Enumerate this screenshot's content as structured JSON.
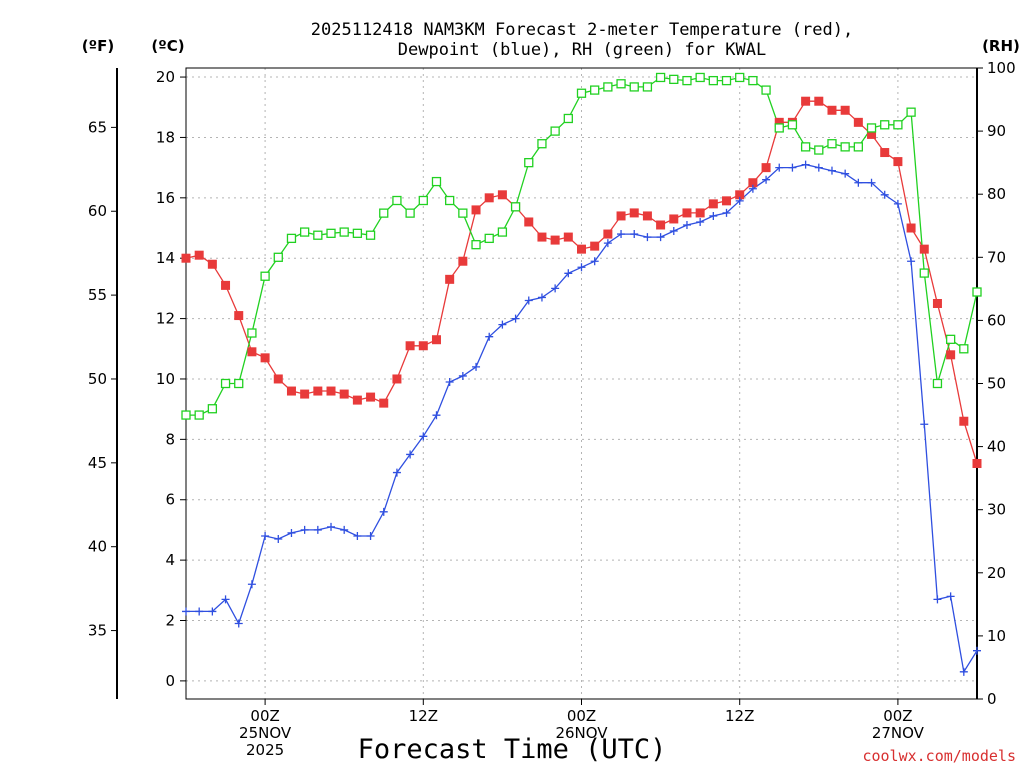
{
  "chart_data": {
    "type": "line",
    "title_lines": [
      "2025112418 NAM3KM Forecast 2-meter Temperature (red),",
      "Dewpoint (blue), RH (green) for KWAL"
    ],
    "unit_labels": {
      "fahrenheit": "(ºF)",
      "celsius": "(ºC)",
      "rh": "(RH)"
    },
    "xlabel": "Forecast Time (UTC)",
    "credit": "coolwx.com/models",
    "x_unit": "forecast hour",
    "xlim": [
      0,
      60
    ],
    "x_ticks": [
      {
        "x": 6,
        "lines": [
          "00Z",
          "25NOV",
          "2025"
        ]
      },
      {
        "x": 18,
        "lines": [
          "12Z"
        ]
      },
      {
        "x": 30,
        "lines": [
          "00Z",
          "26NOV"
        ]
      },
      {
        "x": 42,
        "lines": [
          "12Z"
        ]
      },
      {
        "x": 54,
        "lines": [
          "00Z",
          "27NOV"
        ]
      }
    ],
    "y_celsius": {
      "range": [
        -0.6,
        20.3
      ],
      "ticks": [
        0,
        2,
        4,
        6,
        8,
        10,
        12,
        14,
        16,
        18,
        20
      ]
    },
    "y_fahrenheit": {
      "ticks": [
        35,
        40,
        45,
        50,
        55,
        60,
        65
      ]
    },
    "y_rh": {
      "range": [
        0,
        100
      ],
      "ticks": [
        0,
        10,
        20,
        30,
        40,
        50,
        60,
        70,
        80,
        90,
        100
      ]
    },
    "grid": true,
    "series": [
      {
        "name": "2-meter Temperature",
        "unit": "°C",
        "axis": "celsius",
        "color": "#e83a3a",
        "marker": "filled-square",
        "x": [
          0,
          1,
          2,
          3,
          4,
          5,
          6,
          7,
          8,
          9,
          10,
          11,
          12,
          13,
          14,
          15,
          16,
          17,
          18,
          19,
          20,
          21,
          22,
          23,
          24,
          25,
          26,
          27,
          28,
          29,
          30,
          31,
          32,
          33,
          34,
          35,
          36,
          37,
          38,
          39,
          40,
          41,
          42,
          43,
          44,
          45,
          46,
          47,
          48,
          49,
          50,
          51,
          52,
          53,
          54,
          55,
          56,
          57,
          58,
          59,
          60
        ],
        "values": [
          14.0,
          14.1,
          13.8,
          13.1,
          12.1,
          10.9,
          10.7,
          10.0,
          9.6,
          9.5,
          9.6,
          9.6,
          9.5,
          9.3,
          9.4,
          9.2,
          10.0,
          11.1,
          11.1,
          11.3,
          13.3,
          13.9,
          15.6,
          16.0,
          16.1,
          15.7,
          15.2,
          14.7,
          14.6,
          14.7,
          14.3,
          14.4,
          14.8,
          15.4,
          15.5,
          15.4,
          15.1,
          15.3,
          15.5,
          15.5,
          15.8,
          15.9,
          16.1,
          16.5,
          17.0,
          18.5,
          18.5,
          19.2,
          19.2,
          18.9,
          18.9,
          18.5,
          18.1,
          17.5,
          17.2,
          15.0,
          14.3,
          12.5,
          10.8,
          8.6,
          7.2
        ]
      },
      {
        "name": "Dewpoint",
        "unit": "°C",
        "axis": "celsius",
        "color": "#2f4fe0",
        "marker": "plus",
        "x": [
          0,
          1,
          2,
          3,
          4,
          5,
          6,
          7,
          8,
          9,
          10,
          11,
          12,
          13,
          14,
          15,
          16,
          17,
          18,
          19,
          20,
          21,
          22,
          23,
          24,
          25,
          26,
          27,
          28,
          29,
          30,
          31,
          32,
          33,
          34,
          35,
          36,
          37,
          38,
          39,
          40,
          41,
          42,
          43,
          44,
          45,
          46,
          47,
          48,
          49,
          50,
          51,
          52,
          53,
          54,
          55,
          56,
          57,
          58,
          59,
          60
        ],
        "values": [
          2.3,
          2.3,
          2.3,
          2.7,
          1.9,
          3.2,
          4.8,
          4.7,
          4.9,
          5.0,
          5.0,
          5.1,
          5.0,
          4.8,
          4.8,
          5.6,
          6.9,
          7.5,
          8.1,
          8.8,
          9.9,
          10.1,
          10.4,
          11.4,
          11.8,
          12.0,
          12.6,
          12.7,
          13.0,
          13.5,
          13.7,
          13.9,
          14.5,
          14.8,
          14.8,
          14.7,
          14.7,
          14.9,
          15.1,
          15.2,
          15.4,
          15.5,
          15.9,
          16.3,
          16.6,
          17.0,
          17.0,
          17.1,
          17.0,
          16.9,
          16.8,
          16.5,
          16.5,
          16.1,
          15.8,
          13.9,
          8.5,
          2.7,
          2.8,
          0.3,
          1.0
        ]
      },
      {
        "name": "RH",
        "unit": "%",
        "axis": "rh",
        "color": "#21d121",
        "marker": "open-square",
        "x": [
          0,
          1,
          2,
          3,
          4,
          5,
          6,
          7,
          8,
          9,
          10,
          11,
          12,
          13,
          14,
          15,
          16,
          17,
          18,
          19,
          20,
          21,
          22,
          23,
          24,
          25,
          26,
          27,
          28,
          29,
          30,
          31,
          32,
          33,
          34,
          35,
          36,
          37,
          38,
          39,
          40,
          41,
          42,
          43,
          44,
          45,
          46,
          47,
          48,
          49,
          50,
          51,
          52,
          53,
          54,
          55,
          56,
          57,
          58,
          59,
          60
        ],
        "values": [
          45,
          45,
          46,
          50,
          50,
          58,
          67,
          70,
          73,
          74,
          73.5,
          73.8,
          74,
          73.8,
          73.5,
          77,
          79,
          77,
          79,
          82,
          79,
          77,
          72,
          73,
          74,
          78,
          85,
          88,
          90,
          92,
          96,
          96.5,
          97,
          97.5,
          97,
          97,
          98.5,
          98.2,
          98,
          98.5,
          98,
          98,
          98.5,
          98,
          96.5,
          90.5,
          91,
          87.5,
          87,
          88,
          87.5,
          87.5,
          90.5,
          91,
          91,
          93,
          67.5,
          50,
          57,
          55.5,
          64.5
        ]
      }
    ]
  }
}
